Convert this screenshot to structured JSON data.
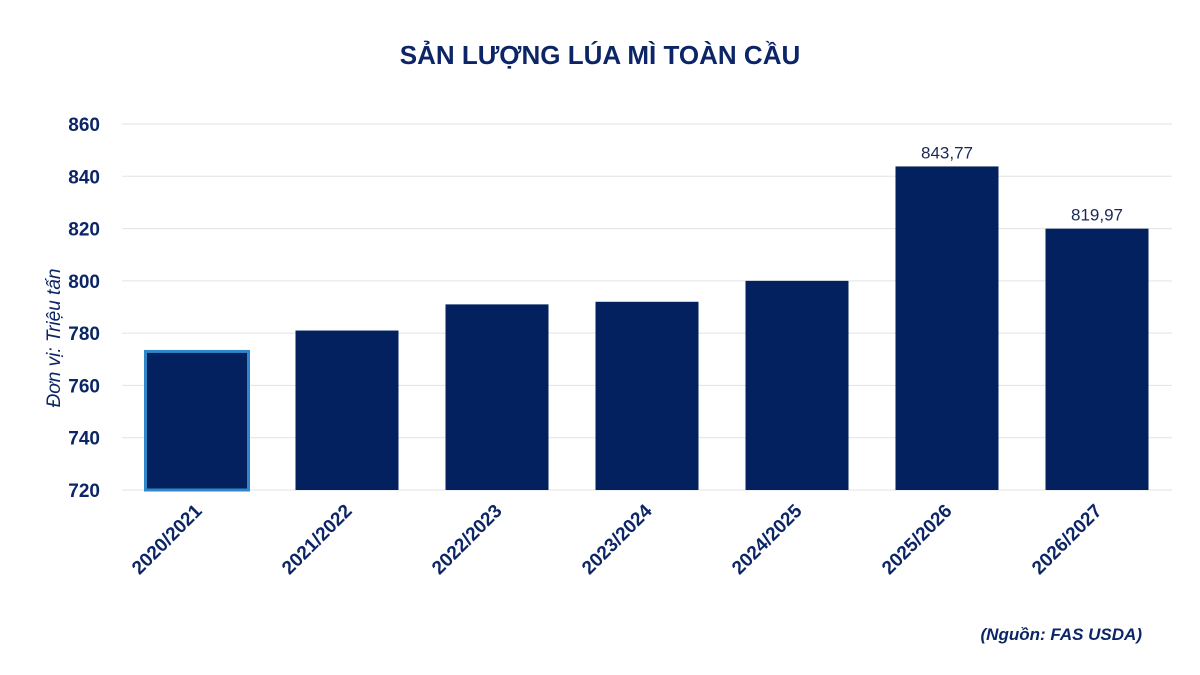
{
  "colors": {
    "bar": "#03215e",
    "highlight_outline": "#2f86c8",
    "text": "#0b2566",
    "grid": "#e3e3e3"
  },
  "chart_data": {
    "type": "bar",
    "title": "SẢN LƯỢNG LÚA MÌ TOÀN CẦU",
    "ylabel": "Đơn vị: Triệu tấn",
    "xlabel": "",
    "categories": [
      "2020/2021",
      "2021/2022",
      "2022/2023",
      "2023/2024",
      "2024/2025",
      "2025/2026",
      "2026/2027"
    ],
    "values": [
      773,
      781,
      791,
      792,
      800,
      843.77,
      819.97
    ],
    "data_labels": [
      "",
      "",
      "",
      "",
      "",
      "843,77",
      "819,97"
    ],
    "highlighted_category": "2020/2021",
    "ylim": [
      720,
      860
    ],
    "yticks": [
      "720",
      "740",
      "760",
      "780",
      "800",
      "820",
      "840",
      "860"
    ],
    "grid": true,
    "legend": "none",
    "source": "(Nguồn: FAS USDA)"
  }
}
